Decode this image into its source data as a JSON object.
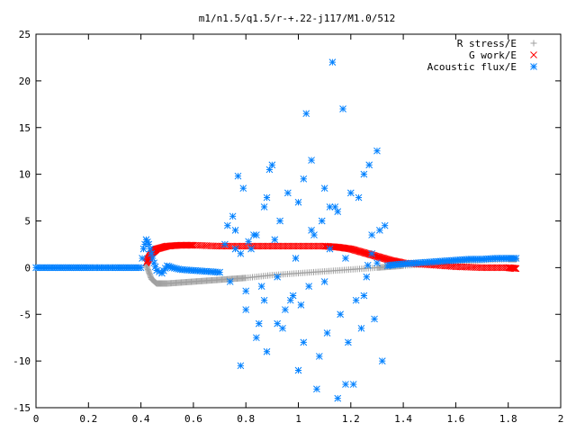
{
  "chart_data": {
    "type": "scatter",
    "title": "m1/n1.5/q1.5/r-+.22-j117/M1.0/512",
    "xlabel": "",
    "ylabel": "",
    "xlim": [
      0,
      2
    ],
    "ylim": [
      -15,
      25
    ],
    "xticks": [
      "0",
      "0.2",
      "0.4",
      "0.6",
      "0.8",
      "1",
      "1.2",
      "1.4",
      "1.6",
      "1.8",
      "2"
    ],
    "yticks": [
      "-15",
      "-10",
      "-5",
      "0",
      "5",
      "10",
      "15",
      "20",
      "25"
    ],
    "grid": false,
    "legend_position": "top-right",
    "series": [
      {
        "name": "R stress/E",
        "marker": "plus",
        "color": "#a0a0a0",
        "x": [
          0.42,
          0.44,
          0.46,
          0.5,
          0.55,
          0.6,
          0.65,
          0.7,
          0.75,
          0.8,
          0.9,
          1.0,
          1.1,
          1.2,
          1.3,
          1.35,
          1.4,
          1.5,
          1.6,
          1.7,
          1.8,
          1.83
        ],
        "y": [
          0.3,
          -1.2,
          -1.7,
          -1.7,
          -1.6,
          -1.5,
          -1.4,
          -1.3,
          -1.2,
          -1.1,
          -0.8,
          -0.6,
          -0.4,
          -0.2,
          0.0,
          0.1,
          0.2,
          0.4,
          0.6,
          0.8,
          0.9,
          0.9
        ]
      },
      {
        "name": "G work/E",
        "marker": "cross",
        "color": "#ff0000",
        "x": [
          0.42,
          0.44,
          0.46,
          0.5,
          0.55,
          0.6,
          0.7,
          0.8,
          0.9,
          1.0,
          1.1,
          1.15,
          1.2,
          1.25,
          1.3,
          1.35,
          1.4,
          1.5,
          1.6,
          1.7,
          1.8,
          1.83
        ],
        "y": [
          0.5,
          1.5,
          2.0,
          2.3,
          2.4,
          2.4,
          2.3,
          2.3,
          2.3,
          2.3,
          2.3,
          2.2,
          2.0,
          1.6,
          1.2,
          0.8,
          0.5,
          0.3,
          0.1,
          0.0,
          0.0,
          -0.1
        ]
      },
      {
        "name": "Acoustic flux/E",
        "marker": "star",
        "color": "#0080ff",
        "x": [
          0.0,
          0.1,
          0.2,
          0.3,
          0.4,
          0.41,
          0.42,
          0.43,
          0.44,
          0.45,
          0.46,
          0.48,
          0.5,
          0.52,
          0.55,
          0.6,
          0.65,
          0.7,
          1.34,
          1.36,
          1.4,
          1.45,
          1.5,
          1.55,
          1.6,
          1.65,
          1.7,
          1.75,
          1.8,
          1.83,
          0.72,
          0.74,
          0.76,
          0.77,
          0.78,
          0.79,
          0.8,
          0.81,
          0.83,
          0.84,
          0.86,
          0.87,
          0.88,
          0.9,
          0.91,
          0.92,
          0.94,
          0.96,
          0.98,
          0.99,
          1.0,
          1.01,
          1.02,
          1.04,
          1.05,
          1.06,
          1.08,
          1.09,
          1.1,
          1.11,
          1.12,
          1.13,
          1.14,
          1.16,
          1.17,
          1.18,
          1.19,
          1.2,
          1.22,
          1.23,
          1.24,
          1.25,
          1.26,
          1.27,
          1.28,
          1.29,
          1.3,
          1.31,
          1.32,
          1.33,
          0.78,
          0.82,
          0.85,
          0.89,
          0.93,
          0.97,
          1.03,
          1.07,
          1.15,
          1.21,
          0.75,
          0.8,
          0.88,
          0.95,
          1.0,
          1.05,
          1.1,
          1.15,
          1.25,
          1.3,
          0.76,
          0.84,
          0.92,
          1.02,
          1.12,
          1.18,
          1.28,
          0.7,
          0.73,
          0.87
        ],
        "y": [
          0.0,
          0.0,
          0.0,
          0.0,
          0.0,
          2.0,
          3.0,
          2.5,
          1.5,
          0.5,
          -0.3,
          -0.6,
          0.2,
          0.0,
          -0.2,
          -0.3,
          -0.4,
          -0.5,
          0.2,
          0.3,
          0.4,
          0.5,
          0.6,
          0.7,
          0.8,
          0.9,
          0.9,
          1.0,
          1.0,
          1.0,
          2.5,
          -1.5,
          4.0,
          9.8,
          1.5,
          8.5,
          -4.5,
          2.8,
          3.5,
          -7.5,
          -2.0,
          6.5,
          -9.0,
          11.0,
          3.0,
          -1.0,
          -6.5,
          8.0,
          -3.0,
          1.0,
          7.0,
          -4.0,
          9.5,
          -2.0,
          11.5,
          3.5,
          -9.5,
          5.0,
          -1.5,
          -7.0,
          2.0,
          22.0,
          6.5,
          -5.0,
          17.0,
          1.0,
          -8.0,
          8.0,
          -3.5,
          7.5,
          -6.5,
          10.0,
          -1.0,
          11.0,
          3.5,
          -5.5,
          12.5,
          4.0,
          -10.0,
          4.5,
          -10.5,
          2.0,
          -6.0,
          10.5,
          5.0,
          -3.5,
          16.5,
          -13.0,
          6.0,
          -12.5,
          5.5,
          -2.5,
          7.5,
          -4.5,
          -11.0,
          4.0,
          8.5,
          -14.0,
          -3.0,
          0.5,
          2.0,
          3.5,
          -6.0,
          -8.0,
          6.5,
          -12.5,
          1.5,
          -0.5,
          4.5,
          -3.5
        ]
      }
    ]
  }
}
